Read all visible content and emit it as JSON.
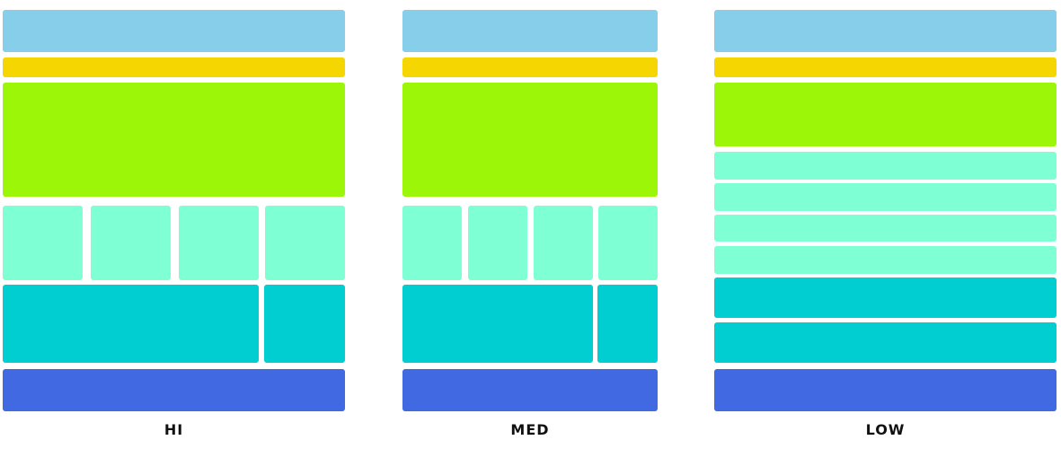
{
  "colors": {
    "header": "#87ceeb",
    "nav": "#f5d600",
    "hero": "#9bf707",
    "card": "#7fffd4",
    "content": "#00ced1",
    "footer": "#4169e1"
  },
  "layouts": [
    {
      "id": "hi",
      "label": "HI"
    },
    {
      "id": "med",
      "label": "MED"
    },
    {
      "id": "low",
      "label": "LOW"
    }
  ]
}
